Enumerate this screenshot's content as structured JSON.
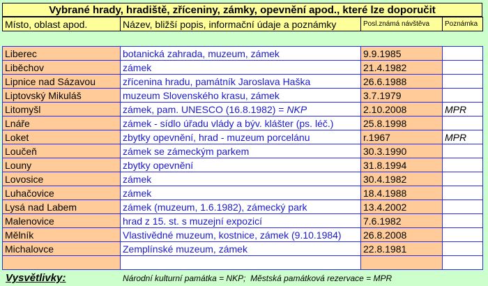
{
  "title": "Vybrané hrady, hradiště, zříceniny, zámky, opevnění apod., které lze doporučit",
  "headers": {
    "place": "Místo, oblast apod.",
    "desc": "Název, bližší popis, informační údaje a poznámky",
    "date": "Posl.známá návštěva",
    "note": "Poznámka"
  },
  "rows": [
    {
      "place": "Liberec",
      "desc": "botanická zahrada, muzeum, zámek",
      "date": "9.9.1985",
      "note": ""
    },
    {
      "place": "Liběchov",
      "desc": "zámek",
      "date": "21.4.1982",
      "note": ""
    },
    {
      "place": "Lipnice nad Sázavou",
      "desc": "zřícenina hradu, památník Jaroslava Haška",
      "date": "26.6.1988",
      "note": ""
    },
    {
      "place": "Liptovský Mikuláš",
      "desc": "muzeum Slovenského krasu, zámek",
      "date": "3.7.1979",
      "note": ""
    },
    {
      "place": "Litomyšl",
      "desc": "zámek, pam. UNESCO (16.8.1982) = ",
      "desc_suffix": "NKP",
      "date": "2.10.2008",
      "note": "MPR"
    },
    {
      "place": "Lnáře",
      "desc": "zámek - sídlo úřadu vlády a býv. klášter (ps. léč.)",
      "date": "25.8.1998",
      "note": ""
    },
    {
      "place": "Loket",
      "desc": "zbytky opevnění, hrad - muzeum porcelánu",
      "date": "r.1967",
      "note": "MPR"
    },
    {
      "place": "Loučeň",
      "desc": "zámek se zámeckým parkem",
      "date": "30.3.1990",
      "note": ""
    },
    {
      "place": "Louny",
      "desc": "zbytky opevnění",
      "date": "31.8.1994",
      "note": ""
    },
    {
      "place": "Lovosice",
      "desc": "zámek",
      "date": "30.4.1982",
      "note": ""
    },
    {
      "place": "Luhačovice",
      "desc": "zámek",
      "date": "18.4.1988",
      "note": ""
    },
    {
      "place": "Lysá nad Labem",
      "desc": "zámek (muzeum, 1.6.1982), zámecký park",
      "date": "13.4.2002",
      "note": ""
    },
    {
      "place": "Malenovice",
      "desc": "hrad z 15. st. s muzejní expozicí",
      "date": "7.6.1982",
      "note": ""
    },
    {
      "place": "Mělník",
      "desc": "Vlastivědné muzeum, kostnice, zámek (9.10.1984)",
      "date": "26.8.2008",
      "note": ""
    },
    {
      "place": "Michalovce",
      "desc": "Zemplínské muzeum, zámek",
      "date": "22.8.1981",
      "note": ""
    },
    {
      "place": "",
      "desc": "",
      "date": "",
      "note": ""
    }
  ],
  "legend": {
    "label": "Vysvětlivky:",
    "text": "Národní kulturní památka = NKP;  Městská památková rezervace = MPR"
  },
  "colors": {
    "background": "#ccffcc",
    "header": "#ffff99",
    "place_cell": "#ffcc99",
    "grid": "#2a2aee",
    "desc_text": "#1a1acc"
  }
}
